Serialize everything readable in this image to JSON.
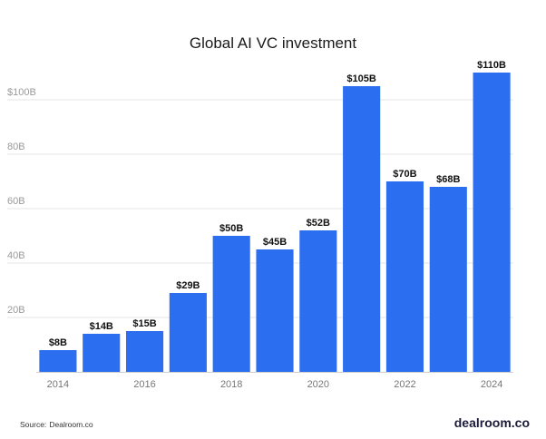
{
  "chart_data": {
    "type": "bar",
    "title": "Global AI VC investment",
    "xlabel": "",
    "ylabel": "",
    "categories": [
      "2014",
      "2015",
      "2016",
      "2017",
      "2018",
      "2019",
      "2020",
      "2021",
      "2022",
      "2023",
      "2024"
    ],
    "values": [
      8,
      14,
      15,
      29,
      50,
      45,
      52,
      105,
      70,
      68,
      110
    ],
    "data_labels": [
      "$8B",
      "$14B",
      "$15B",
      "$29B",
      "$50B",
      "$45B",
      "$52B",
      "$105B",
      "$70B",
      "$68B",
      "$110B"
    ],
    "ylim": [
      0,
      110
    ],
    "y_ticks": [
      20,
      40,
      60,
      80,
      100
    ],
    "y_tick_labels": [
      "20B",
      "40B",
      "60B",
      "80B",
      "$100B"
    ],
    "x_tick_labels": [
      "2014",
      "",
      "2016",
      "",
      "2018",
      "",
      "2020",
      "",
      "2022",
      "",
      "2024"
    ],
    "grid": "horizontal",
    "bar_color": "#2b6ff0",
    "grid_color": "#e6e6e6"
  },
  "footer": {
    "source_label": "Source:",
    "source_value": "Dealroom.co",
    "brand": "dealroom.co"
  }
}
